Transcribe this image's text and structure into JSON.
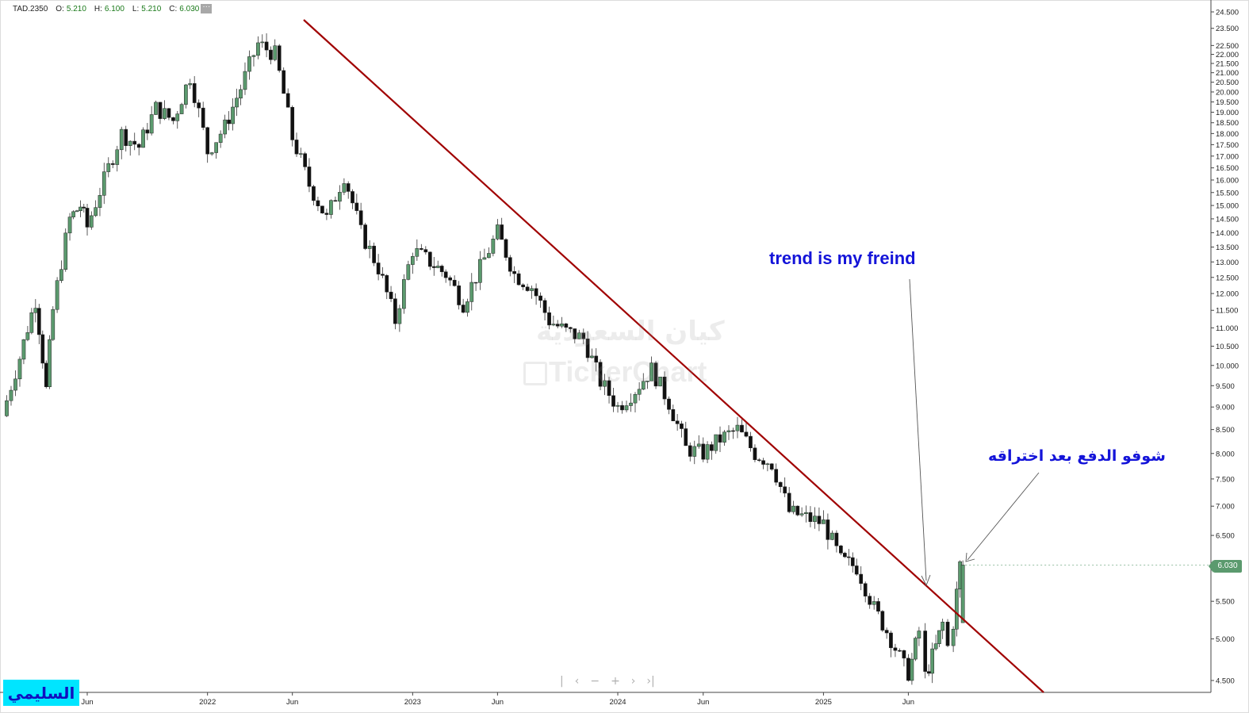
{
  "header": {
    "symbol": "TAD.2350",
    "open_label": "O:",
    "open": "5.210",
    "high_label": "H:",
    "high": "6.100",
    "low_label": "L:",
    "low": "5.210",
    "close_label": "C:",
    "close": "6.030",
    "more_glyph": "···"
  },
  "annotations": {
    "english": "trend is my freind",
    "arabic": "شوفو الدفع بعد اختراقه"
  },
  "author_badge": "السليمي",
  "watermark": {
    "arabic": "كيان السعودية",
    "english": "TickerChart"
  },
  "nav_controls": [
    "|",
    "‹",
    "−",
    "+",
    "›",
    "›|"
  ],
  "colors": {
    "up_candle": "#5b9a6e",
    "down_candle": "#111111",
    "trendline": "#a00000",
    "annotation_text": "#1414d9",
    "badge_bg": "#00e5ff"
  },
  "chart_data": {
    "type": "candlestick",
    "x_axis_labels": [
      "Jun",
      "2022",
      "Jun",
      "2023",
      "Jun",
      "2024",
      "Jun",
      "2025",
      "Jun"
    ],
    "y_axis_ticks": [
      "24.500",
      "23.500",
      "22.500",
      "22.000",
      "21.500",
      "21.000",
      "20.500",
      "20.000",
      "19.500",
      "19.000",
      "18.500",
      "18.000",
      "17.500",
      "17.000",
      "16.500",
      "16.000",
      "15.500",
      "15.000",
      "14.500",
      "14.000",
      "13.500",
      "13.000",
      "12.500",
      "12.000",
      "11.500",
      "11.000",
      "10.500",
      "10.000",
      "9.500",
      "9.000",
      "8.500",
      "8.000",
      "7.500",
      "7.000",
      "6.500",
      "6.000",
      "5.500",
      "5.000",
      "4.500"
    ],
    "scale": "log",
    "ylim": [
      4.4,
      24.8
    ],
    "last_price_label": "6.030",
    "weekly_close_path": [
      {
        "date": "2021-01",
        "close": 8.8
      },
      {
        "date": "2021-02",
        "close": 10.2
      },
      {
        "date": "2021-03",
        "close": 11.8
      },
      {
        "date": "2021-03-20",
        "close": 9.4
      },
      {
        "date": "2021-04",
        "close": 11.5
      },
      {
        "date": "2021-05",
        "close": 14.5
      },
      {
        "date": "2021-05-20",
        "close": 15.0
      },
      {
        "date": "2021-06",
        "close": 14.2
      },
      {
        "date": "2021-07",
        "close": 16.0
      },
      {
        "date": "2021-08",
        "close": 18.0
      },
      {
        "date": "2021-09",
        "close": 17.4
      },
      {
        "date": "2021-10",
        "close": 19.2
      },
      {
        "date": "2021-11",
        "close": 18.6
      },
      {
        "date": "2021-12",
        "close": 20.8
      },
      {
        "date": "2022-01",
        "close": 17.2
      },
      {
        "date": "2022-02",
        "close": 18.3
      },
      {
        "date": "2022-03",
        "close": 20.2
      },
      {
        "date": "2022-04",
        "close": 22.6
      },
      {
        "date": "2022-05",
        "close": 22.0
      },
      {
        "date": "2022-06",
        "close": 17.8
      },
      {
        "date": "2022-07",
        "close": 15.8
      },
      {
        "date": "2022-08",
        "close": 14.5
      },
      {
        "date": "2022-09",
        "close": 16.2
      },
      {
        "date": "2022-10",
        "close": 14.0
      },
      {
        "date": "2022-11",
        "close": 12.8
      },
      {
        "date": "2022-12",
        "close": 11.2
      },
      {
        "date": "2023-01",
        "close": 13.4
      },
      {
        "date": "2023-02",
        "close": 13.0
      },
      {
        "date": "2023-03",
        "close": 12.6
      },
      {
        "date": "2023-04",
        "close": 11.7
      },
      {
        "date": "2023-05",
        "close": 12.8
      },
      {
        "date": "2023-06",
        "close": 14.0
      },
      {
        "date": "2023-07",
        "close": 12.6
      },
      {
        "date": "2023-08",
        "close": 12.2
      },
      {
        "date": "2023-09",
        "close": 11.2
      },
      {
        "date": "2023-10",
        "close": 10.9
      },
      {
        "date": "2023-11",
        "close": 10.7
      },
      {
        "date": "2023-12",
        "close": 9.6
      },
      {
        "date": "2024-01",
        "close": 9.0
      },
      {
        "date": "2024-02",
        "close": 9.4
      },
      {
        "date": "2024-03",
        "close": 9.9
      },
      {
        "date": "2024-04",
        "close": 9.1
      },
      {
        "date": "2024-05",
        "close": 8.1
      },
      {
        "date": "2024-06",
        "close": 8.0
      },
      {
        "date": "2024-07",
        "close": 8.3
      },
      {
        "date": "2024-08",
        "close": 8.5
      },
      {
        "date": "2024-09",
        "close": 8.0
      },
      {
        "date": "2024-10",
        "close": 7.8
      },
      {
        "date": "2024-11",
        "close": 6.9
      },
      {
        "date": "2024-12",
        "close": 6.8
      },
      {
        "date": "2025-01",
        "close": 6.7
      },
      {
        "date": "2025-02",
        "close": 6.1
      },
      {
        "date": "2025-03",
        "close": 6.0
      },
      {
        "date": "2025-04",
        "close": 5.4
      },
      {
        "date": "2025-05",
        "close": 5.0
      },
      {
        "date": "2025-06",
        "close": 4.55
      },
      {
        "date": "2025-06-20",
        "close": 5.1
      },
      {
        "date": "2025-07",
        "close": 4.55
      },
      {
        "date": "2025-07-20",
        "close": 4.9
      },
      {
        "date": "2025-08",
        "close": 5.2
      },
      {
        "date": "2025-08-10",
        "close": 4.9
      },
      {
        "date": "2025-08-20",
        "close": 5.21
      },
      {
        "date": "2025-09",
        "close": 6.03
      }
    ],
    "trendline": {
      "from": {
        "date": "2022-04",
        "price": 24.0
      },
      "to": {
        "date": "2025-12",
        "price": 4.4
      }
    }
  }
}
